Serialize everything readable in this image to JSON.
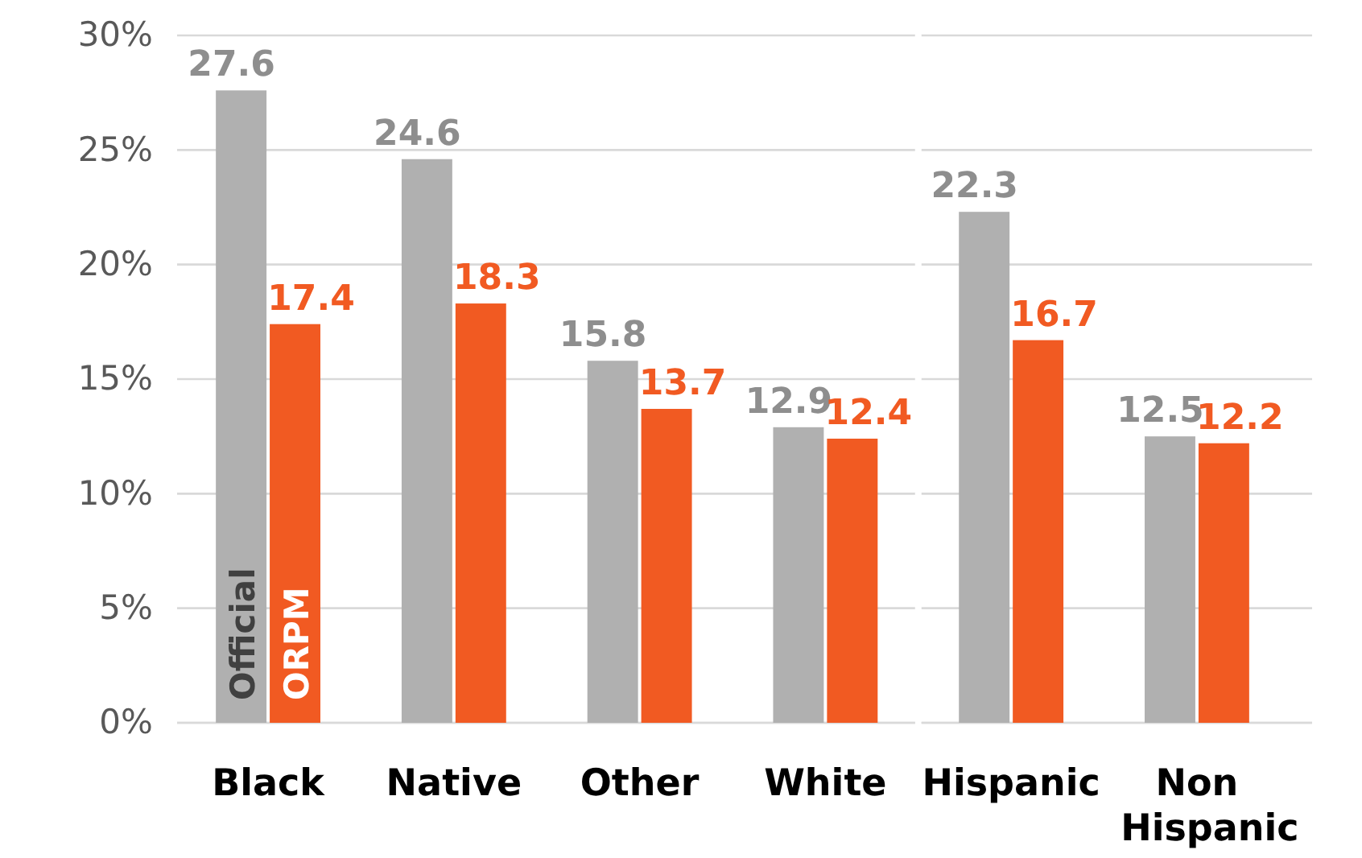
{
  "chart_data": {
    "type": "bar",
    "categories": [
      "Black",
      "Native",
      "Other",
      "White",
      "Hispanic",
      "Non Hispanic"
    ],
    "series": [
      {
        "name": "Official",
        "color": "#b0b0b0",
        "values": [
          27.6,
          24.6,
          15.8,
          12.9,
          22.3,
          12.5
        ]
      },
      {
        "name": "ORPM",
        "color": "#f15a22",
        "values": [
          17.4,
          18.3,
          13.7,
          12.4,
          16.7,
          12.2
        ]
      }
    ],
    "ylim": [
      0,
      30
    ],
    "yticks": [
      {
        "value": 0,
        "label": "0%"
      },
      {
        "value": 5,
        "label": "5%"
      },
      {
        "value": 10,
        "label": "10%"
      },
      {
        "value": 15,
        "label": "15%"
      },
      {
        "value": 20,
        "label": "20%"
      },
      {
        "value": 25,
        "label": "25%"
      },
      {
        "value": 30,
        "label": "30%"
      }
    ],
    "grid": "y",
    "data_labels": true
  }
}
